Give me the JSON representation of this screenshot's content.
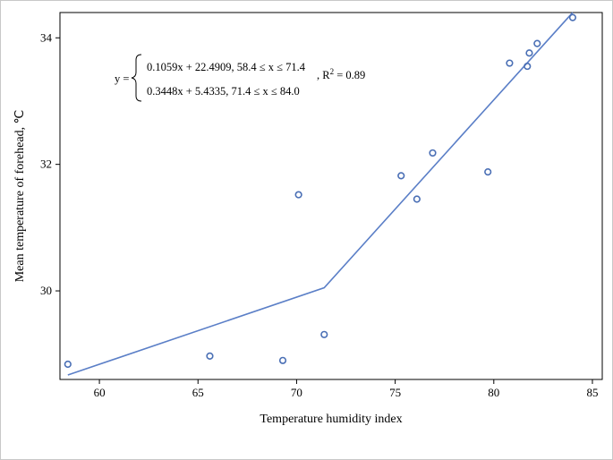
{
  "chart_data": {
    "type": "scatter",
    "xlabel": "Temperature humidity index",
    "ylabel": "Mean temperature of forehead, ℃",
    "xlim": [
      58.0,
      85.5
    ],
    "ylim": [
      28.6,
      34.4
    ],
    "x_ticks": [
      60,
      65,
      70,
      75,
      80,
      85
    ],
    "y_ticks": [
      30,
      32,
      34
    ],
    "grid": false,
    "marker_color": "#4a6fb5",
    "line_color": "#5b7fc7",
    "points": [
      {
        "x": 58.4,
        "y": 28.84
      },
      {
        "x": 65.6,
        "y": 28.97
      },
      {
        "x": 69.3,
        "y": 28.9
      },
      {
        "x": 70.1,
        "y": 31.52
      },
      {
        "x": 71.4,
        "y": 29.31
      },
      {
        "x": 75.3,
        "y": 31.82
      },
      {
        "x": 76.1,
        "y": 31.45
      },
      {
        "x": 76.9,
        "y": 32.18
      },
      {
        "x": 79.7,
        "y": 31.88
      },
      {
        "x": 80.8,
        "y": 33.6
      },
      {
        "x": 81.7,
        "y": 33.55
      },
      {
        "x": 81.8,
        "y": 33.76
      },
      {
        "x": 82.2,
        "y": 33.91
      },
      {
        "x": 84.0,
        "y": 34.32
      }
    ],
    "fit_line": {
      "x": [
        58.4,
        71.4,
        84.0
      ],
      "y": [
        28.67,
        30.05,
        34.4
      ]
    },
    "annotation": {
      "lhs": "y =",
      "line1": "0.1059x + 22.4909, 58.4 ≤ x ≤ 71.4",
      "line2": "0.3448x + 5.4335, 71.4 ≤ x ≤ 84.0",
      "r2_prefix": ", R",
      "r2_sup": "2",
      "r2_suffix": " = 0.89"
    }
  }
}
